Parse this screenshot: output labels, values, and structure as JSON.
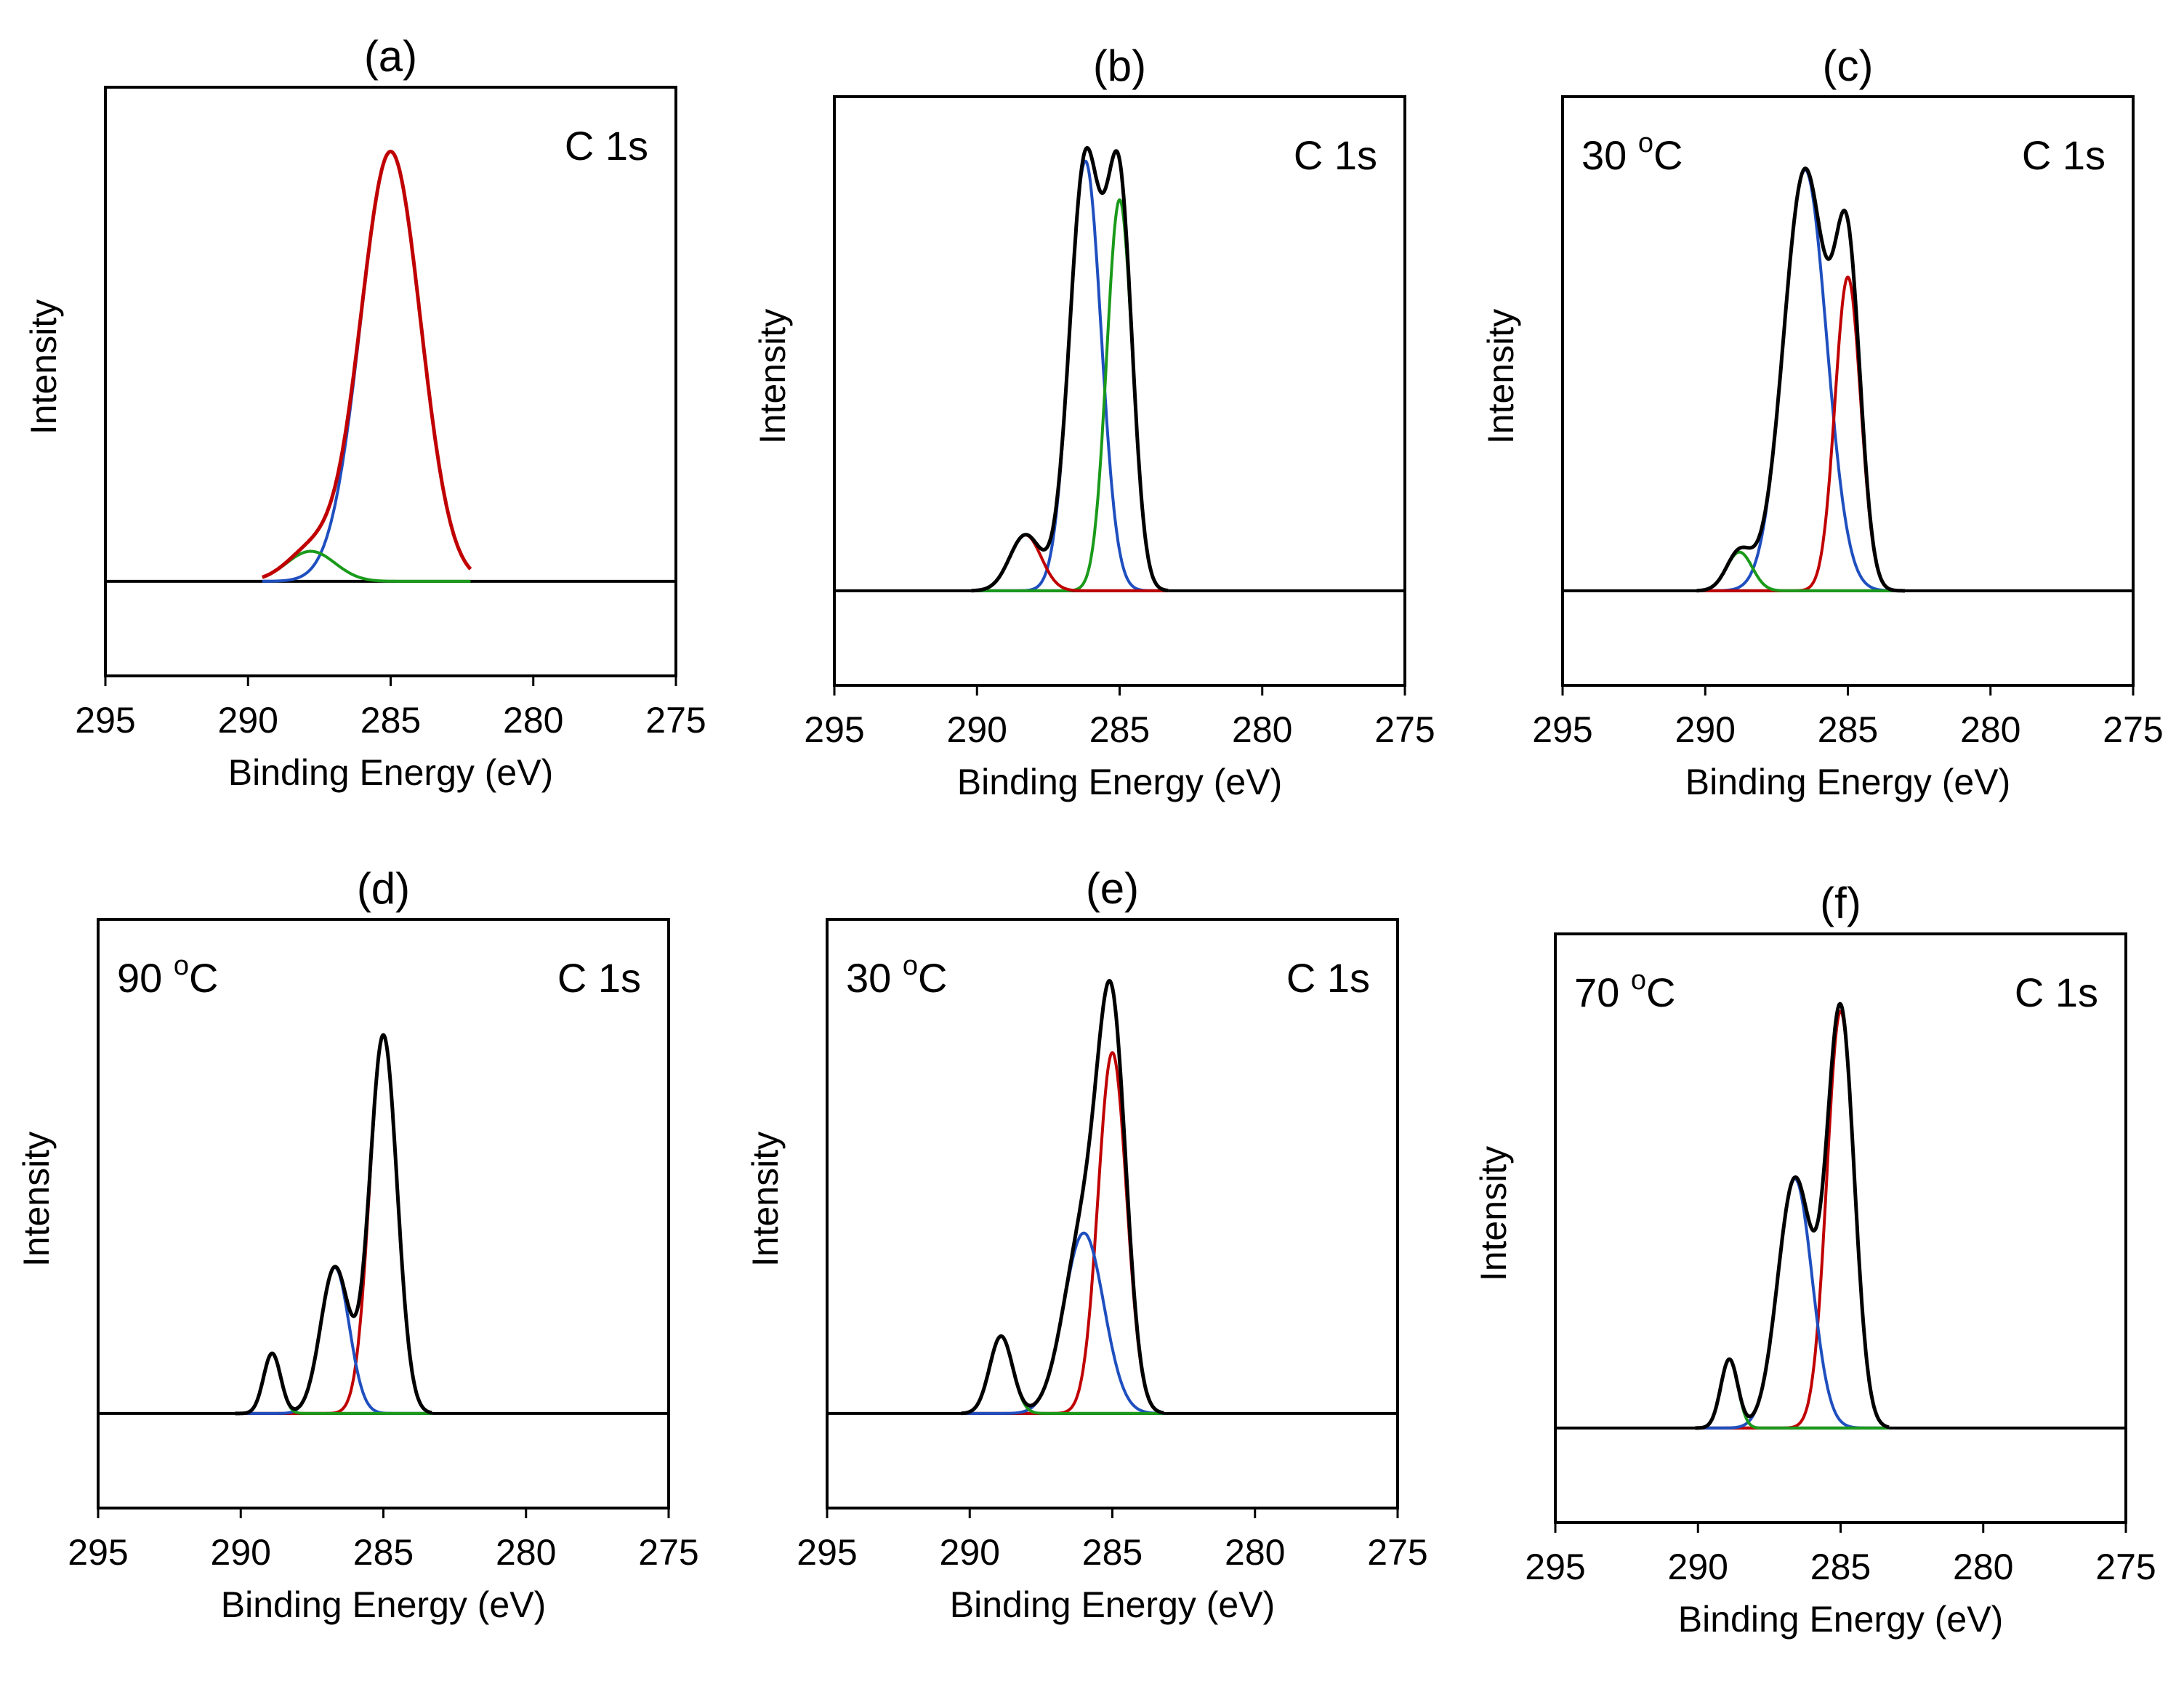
{
  "figure": {
    "description_free": true
  },
  "chart_data": [
    {
      "type": "line",
      "panel_label": "(a)",
      "title": "",
      "annotation": "C 1s",
      "temperature": null,
      "xlabel": "Binding Energy (eV)",
      "ylabel": "Intensity",
      "xlim": [
        295,
        275
      ],
      "xticks": [
        295,
        290,
        285,
        280,
        275
      ],
      "ylim": [
        -0.22,
        1.15
      ],
      "baseline": 0,
      "x_extent": [
        289.5,
        282.2
      ],
      "envelope_color": "#c00000",
      "components": [
        {
          "color": "#1f4fbf",
          "center": 285.0,
          "height": 1.0,
          "width": 1.05
        },
        {
          "color": "#1a9a1a",
          "center": 287.8,
          "height": 0.07,
          "width": 0.85
        }
      ]
    },
    {
      "type": "line",
      "panel_label": "(b)",
      "annotation": "C 1s",
      "temperature": null,
      "xlabel": "Binding Energy (eV)",
      "ylabel": "Intensity",
      "xlim": [
        295,
        275
      ],
      "xticks": [
        295,
        290,
        285,
        280,
        275
      ],
      "ylim": [
        -0.22,
        1.15
      ],
      "baseline": 0,
      "x_extent": [
        290.2,
        283.3
      ],
      "envelope_color": "#000000",
      "components": [
        {
          "color": "#1f4fbf",
          "center": 286.2,
          "height": 1.0,
          "width": 0.55
        },
        {
          "color": "#1a9a1a",
          "center": 285.0,
          "height": 0.91,
          "width": 0.45
        },
        {
          "color": "#c00000",
          "center": 288.3,
          "height": 0.13,
          "width": 0.55
        }
      ]
    },
    {
      "type": "line",
      "panel_label": "(c)",
      "annotation": "C 1s",
      "temperature": {
        "value": "30",
        "degree": "o",
        "unit": "C"
      },
      "xlabel": "Binding Energy (eV)",
      "ylabel": "Intensity",
      "xlim": [
        295,
        275
      ],
      "xticks": [
        295,
        290,
        285,
        280,
        275
      ],
      "ylim": [
        -0.22,
        1.15
      ],
      "baseline": 0,
      "x_extent": [
        290.3,
        283.0
      ],
      "envelope_color": "#000000",
      "components": [
        {
          "color": "#1f4fbf",
          "center": 286.5,
          "height": 0.98,
          "width": 0.75
        },
        {
          "color": "#c00000",
          "center": 285.0,
          "height": 0.73,
          "width": 0.45
        },
        {
          "color": "#1a9a1a",
          "center": 288.8,
          "height": 0.09,
          "width": 0.45
        }
      ]
    },
    {
      "type": "line",
      "panel_label": "(d)",
      "annotation": "C 1s",
      "temperature": {
        "value": "90",
        "degree": "o",
        "unit": "C"
      },
      "xlabel": "Binding Energy (eV)",
      "ylabel": "Intensity",
      "xlim": [
        295,
        275
      ],
      "xticks": [
        295,
        290,
        285,
        280,
        275
      ],
      "ylim": [
        -0.22,
        1.15
      ],
      "baseline": 0,
      "x_extent": [
        290.2,
        283.3
      ],
      "envelope_color": "#000000",
      "components": [
        {
          "color": "#c00000",
          "center": 285.0,
          "height": 0.88,
          "width": 0.48
        },
        {
          "color": "#1f4fbf",
          "center": 286.7,
          "height": 0.34,
          "width": 0.5
        },
        {
          "color": "#1a9a1a",
          "center": 288.9,
          "height": 0.14,
          "width": 0.3
        }
      ]
    },
    {
      "type": "line",
      "panel_label": "(e)",
      "annotation": "C 1s",
      "temperature": {
        "value": "30",
        "degree": "o",
        "unit": "C"
      },
      "xlabel": "Binding Energy (eV)",
      "ylabel": "Intensity",
      "xlim": [
        295,
        275
      ],
      "xticks": [
        295,
        290,
        285,
        280,
        275
      ],
      "ylim": [
        -0.22,
        1.15
      ],
      "baseline": 0,
      "x_extent": [
        290.3,
        283.2
      ],
      "envelope_color": "#000000",
      "components": [
        {
          "color": "#c00000",
          "center": 285.0,
          "height": 0.84,
          "width": 0.5
        },
        {
          "color": "#1f4fbf",
          "center": 286.0,
          "height": 0.42,
          "width": 0.7
        },
        {
          "color": "#1a9a1a",
          "center": 288.9,
          "height": 0.18,
          "width": 0.4
        }
      ]
    },
    {
      "type": "line",
      "panel_label": "(f)",
      "annotation": "C 1s",
      "temperature": {
        "value": "70",
        "degree": "o",
        "unit": "C"
      },
      "xlabel": "Binding Energy (eV)",
      "ylabel": "Intensity",
      "xlim": [
        295,
        275
      ],
      "xticks": [
        295,
        290,
        285,
        280,
        275
      ],
      "ylim": [
        -0.22,
        1.15
      ],
      "baseline": 0,
      "x_extent": [
        290.1,
        283.3
      ],
      "envelope_color": "#000000",
      "components": [
        {
          "color": "#c00000",
          "center": 285.0,
          "height": 0.97,
          "width": 0.48
        },
        {
          "color": "#1f4fbf",
          "center": 286.6,
          "height": 0.58,
          "width": 0.6
        },
        {
          "color": "#1a9a1a",
          "center": 288.9,
          "height": 0.16,
          "width": 0.3
        }
      ]
    }
  ]
}
